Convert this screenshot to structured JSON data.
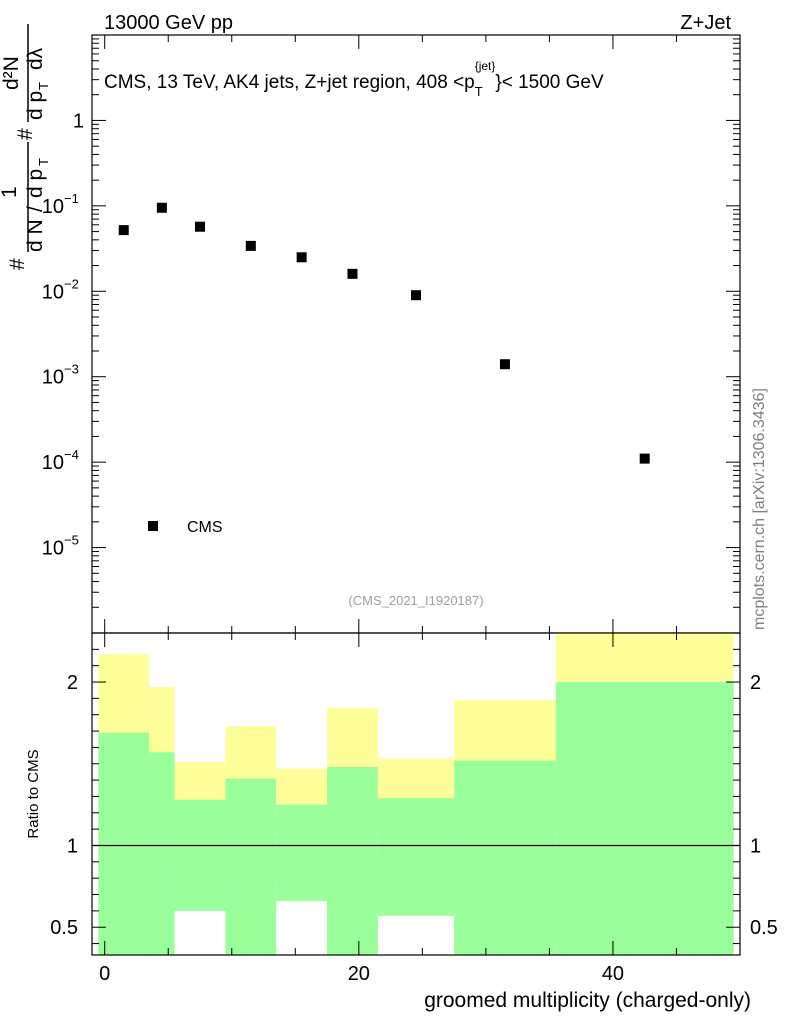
{
  "header": {
    "energy_label": "13000 GeV pp",
    "process_label": "Z+Jet"
  },
  "side_watermark": "mcplots.cern.ch [arXiv:1306.3436]",
  "analysis_id": "(CMS_2021_I1920187)",
  "colors": {
    "green_band": "#9aff9a",
    "yellow_band": "#ffff99",
    "marker": "#000000"
  },
  "chart_data": [
    {
      "type": "scatter",
      "title": "CMS, 13 TeV, AK4 jets, Z+jet region, 408 <p_T^{jet}< 1500 GeV",
      "title_parts": {
        "before": "CMS, 13 TeV, AK4 jets, Z+jet region, 408 <p",
        "sub": "T",
        "sup": "{jet}",
        "after": "}< 1500 GeV"
      },
      "ylabel": "1/dN/dp_T # d²N/dp_T dλ",
      "ylabel_parts": {
        "hash1": "#",
        "one": "1",
        "dn": "d N",
        "slash": "/",
        "dp": "d p",
        "t": "T",
        "hash2": "#",
        "numer": "d²N",
        "denom": "d p",
        "t2": "T",
        "dl": "dλ"
      },
      "yscale": "log",
      "ylim": [
        1e-06,
        10
      ],
      "y_ticks": [
        {
          "value": 1,
          "label": "1"
        },
        {
          "value": 0.1,
          "label": "10",
          "exp": "−1"
        },
        {
          "value": 0.01,
          "label": "10",
          "exp": "−2"
        },
        {
          "value": 0.001,
          "label": "10",
          "exp": "−3"
        },
        {
          "value": 0.0001,
          "label": "10",
          "exp": "−4"
        },
        {
          "value": 1e-05,
          "label": "10",
          "exp": "−5"
        }
      ],
      "xlim": [
        -1,
        50
      ],
      "series": [
        {
          "name": "CMS",
          "x": [
            1.5,
            4.5,
            7.5,
            11.5,
            15.5,
            19.5,
            24.5,
            31.5,
            42.5
          ],
          "y": [
            0.052,
            0.095,
            0.057,
            0.034,
            0.025,
            0.016,
            0.009,
            0.0014,
            0.00011
          ]
        }
      ],
      "legend": {
        "location": "lower-left",
        "entries": [
          "CMS"
        ]
      }
    },
    {
      "type": "area",
      "ylabel": "Ratio to CMS",
      "xlabel": "groomed multiplicity (charged-only)",
      "xlim": [
        -1,
        50
      ],
      "ylim": [
        0.33,
        2.3
      ],
      "reference_line": 1,
      "x_ticks": [
        {
          "value": 0,
          "label": "0"
        },
        {
          "value": 20,
          "label": "20"
        },
        {
          "value": 40,
          "label": "40"
        }
      ],
      "y_ticks": [
        {
          "value": 0.5,
          "label": "0.5"
        },
        {
          "value": 1,
          "label": "1"
        },
        {
          "value": 2,
          "label": "2"
        }
      ],
      "bins": [
        {
          "lo": -0.5,
          "hi": 3.5,
          "green": [
            0.3,
            1.69
          ],
          "yellow": [
            0.3,
            2.17
          ]
        },
        {
          "lo": 3.5,
          "hi": 5.5,
          "green": [
            0.3,
            1.57
          ],
          "yellow": [
            0.53,
            1.97
          ]
        },
        {
          "lo": 5.5,
          "hi": 9.5,
          "green": [
            0.6,
            1.28
          ],
          "yellow": [
            0.83,
            1.51
          ]
        },
        {
          "lo": 9.5,
          "hi": 13.5,
          "green": [
            0.3,
            1.41
          ],
          "yellow": [
            0.72,
            1.73
          ]
        },
        {
          "lo": 13.5,
          "hi": 17.5,
          "green": [
            0.66,
            1.25
          ],
          "yellow": [
            0.85,
            1.47
          ]
        },
        {
          "lo": 17.5,
          "hi": 21.5,
          "green": [
            0.3,
            1.48
          ],
          "yellow": [
            0.63,
            1.84
          ]
        },
        {
          "lo": 21.5,
          "hi": 27.5,
          "green": [
            0.57,
            1.29
          ],
          "yellow": [
            0.81,
            1.53
          ]
        },
        {
          "lo": 27.5,
          "hi": 35.5,
          "green": [
            0.3,
            1.52
          ],
          "yellow": [
            0.59,
            1.89
          ]
        },
        {
          "lo": 35.5,
          "hi": 49.5,
          "green": [
            0.3,
            2.0
          ],
          "yellow": [
            0.3,
            2.33
          ]
        }
      ]
    }
  ]
}
